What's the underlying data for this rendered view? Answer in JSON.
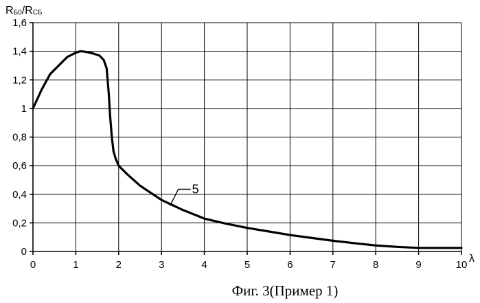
{
  "chart_data": {
    "type": "line",
    "ylabel_main": "R",
    "ylabel_sub1": "Б0",
    "ylabel_sep": "/R",
    "ylabel_sub2": "СБ",
    "xlabel": "λ",
    "caption": "Фиг. 3(Пример 1)",
    "xlim": [
      0,
      10
    ],
    "ylim": [
      0,
      1.6
    ],
    "grid": true,
    "x_ticks": [
      "0",
      "1",
      "2",
      "3",
      "4",
      "5",
      "6",
      "7",
      "8",
      "9",
      "10"
    ],
    "y_ticks": [
      "0",
      "0,2",
      "0,4",
      "0,6",
      "0,8",
      "1",
      "1,2",
      "1,4",
      "1,6"
    ],
    "y_tick_values": [
      0,
      0.2,
      0.4,
      0.6,
      0.8,
      1.0,
      1.2,
      1.4,
      1.6
    ],
    "annotation": {
      "text": "5",
      "target_x": 3.2,
      "target_y": 0.32
    },
    "series": [
      {
        "x": [
          0,
          0.2,
          0.4,
          0.6,
          0.8,
          1.0,
          1.1,
          1.2,
          1.4,
          1.55,
          1.65,
          1.72,
          1.77,
          1.8,
          1.84,
          1.88,
          1.93,
          2.0,
          2.2,
          2.5,
          3.0,
          3.5,
          4.0,
          4.5,
          5.0,
          5.5,
          6.0,
          6.5,
          7.0,
          7.5,
          8.0,
          8.5,
          9.0,
          9.5,
          10.0
        ],
        "y": [
          1.0,
          1.13,
          1.24,
          1.3,
          1.36,
          1.39,
          1.4,
          1.398,
          1.385,
          1.37,
          1.34,
          1.28,
          1.1,
          0.95,
          0.8,
          0.7,
          0.65,
          0.6,
          0.54,
          0.46,
          0.36,
          0.29,
          0.23,
          0.195,
          0.165,
          0.14,
          0.115,
          0.095,
          0.075,
          0.058,
          0.042,
          0.032,
          0.025,
          0.025,
          0.025
        ]
      }
    ]
  }
}
